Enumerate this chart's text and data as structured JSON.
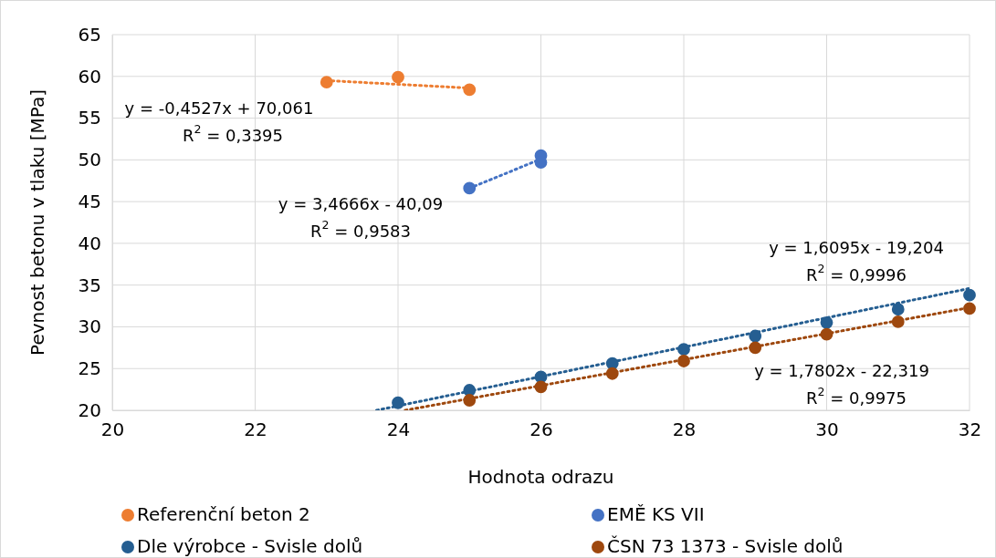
{
  "chart_data": {
    "type": "scatter",
    "xlabel": "Hodnota odrazu",
    "ylabel": "Pevnost betonu v tlaku [MPa]",
    "xlim": [
      20,
      32
    ],
    "xticks": [
      20,
      22,
      24,
      26,
      28,
      30,
      32
    ],
    "ylim": [
      20,
      65
    ],
    "yticks": [
      20,
      25,
      30,
      35,
      40,
      45,
      50,
      55,
      60,
      65
    ],
    "grid": true,
    "legend": "bottom",
    "marker": "circle",
    "series": [
      {
        "name": "Referenční beton 2",
        "color": "#ed7d31",
        "x": [
          23,
          24,
          25
        ],
        "values": [
          59.3,
          59.9,
          58.4
        ]
      },
      {
        "name": "EMĚ KS VII",
        "color": "#4472c4",
        "x": [
          25,
          26,
          26
        ],
        "values": [
          46.6,
          50.5,
          49.7
        ]
      },
      {
        "name": "Dle výrobce - Svisle dolů",
        "color": "#255e91",
        "x": [
          24,
          25,
          26,
          27,
          28,
          29,
          30,
          31,
          32
        ],
        "values": [
          20.9,
          22.4,
          24.0,
          25.6,
          27.3,
          28.9,
          30.5,
          32.1,
          33.8
        ]
      },
      {
        "name": "ČSN 73 1373 - Svisle dolů",
        "color": "#9e480e",
        "x": [
          25,
          26,
          27,
          28,
          29,
          30,
          31,
          32
        ],
        "values": [
          21.2,
          22.8,
          24.4,
          25.9,
          27.5,
          29.1,
          30.6,
          32.2
        ]
      },
      {
        "type": "line",
        "color": "#ed7d31",
        "line_style": "dotted",
        "marker": "none",
        "x": [
          23,
          25
        ],
        "values": [
          59.5,
          58.6
        ]
      },
      {
        "type": "line",
        "color": "#4472c4",
        "line_style": "dotted",
        "marker": "none",
        "x": [
          25,
          26
        ],
        "values": [
          46.6,
          50.1
        ]
      },
      {
        "type": "line",
        "color": "#255e91",
        "line_style": "dotted",
        "marker": "none",
        "x": [
          23.7,
          32
        ],
        "values": [
          20,
          34.6
        ]
      },
      {
        "type": "line",
        "color": "#9e480e",
        "line_style": "dotted",
        "marker": "none",
        "x": [
          24.1,
          32
        ],
        "values": [
          20,
          32.3
        ]
      }
    ],
    "annotations": [
      "y = -0,4527x + 70,061",
      "R$^{2}$ = 0,3395",
      "y = 3,4666x - 40,09",
      "R$^{2}$ = 0,9583",
      "y = 1,6095x - 19,204",
      "R$^{2}$ = 0,9996",
      "y = 1,7802x - 22,319",
      "R$^{2}$ = 0,9975"
    ]
  }
}
